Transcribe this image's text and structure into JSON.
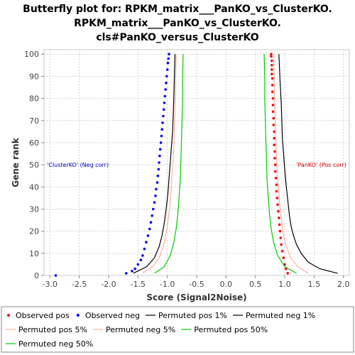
{
  "chart_data": {
    "type": "line",
    "title_lines": [
      "Butterfly plot for: RPKM_matrix___PanKO_vs_ClusterKO.",
      "RPKM_matrix___PanKO_vs_ClusterKO.",
      "cls#PanKO_versus_ClusterKO"
    ],
    "xlabel": "Score (Signal2Noise)",
    "ylabel": "Gene rank",
    "xlim": [
      -3.1,
      2.1
    ],
    "ylim": [
      0,
      102
    ],
    "xticks": [
      -3.0,
      -2.5,
      -2.0,
      -1.5,
      -1.0,
      -0.5,
      0.0,
      0.5,
      1.0,
      1.5,
      2.0
    ],
    "yticks": [
      0,
      10,
      20,
      30,
      40,
      50,
      60,
      70,
      80,
      90,
      100
    ],
    "grid": true,
    "legend_position": "bottom",
    "annotations": [
      {
        "text": "'ClusterKO' (Neg corr)",
        "x": -3.05,
        "y": 50,
        "color": "#0000cc",
        "anchor": "start"
      },
      {
        "text": "'PanKO' (Pos corr)",
        "x": 2.05,
        "y": 50,
        "color": "#cc0000",
        "anchor": "end"
      }
    ],
    "series": [
      {
        "name": "Observed pos",
        "kind": "points",
        "color": "#ff0000",
        "x": [
          1.05,
          1.02,
          1.0,
          0.98,
          0.96,
          0.94,
          0.93,
          0.92,
          0.91,
          0.9,
          0.89,
          0.88,
          0.87,
          0.86,
          0.86,
          0.85,
          0.84,
          0.84,
          0.83,
          0.83,
          0.82,
          0.82,
          0.82,
          0.81,
          0.81,
          0.8,
          0.8,
          0.8,
          0.79,
          0.79,
          0.79,
          0.78,
          0.78,
          0.78,
          0.78,
          0.77,
          0.77
        ],
        "y": [
          1,
          3,
          5,
          8,
          11,
          14,
          17,
          20,
          23,
          26,
          29,
          32,
          35,
          38,
          41,
          44,
          47,
          50,
          53,
          56,
          59,
          62,
          65,
          68,
          71,
          74,
          77,
          80,
          83,
          86,
          89,
          91,
          93,
          95,
          97,
          99,
          100
        ]
      },
      {
        "name": "Observed neg",
        "kind": "points",
        "color": "#0000ff",
        "x": [
          -2.9,
          -1.7,
          -1.6,
          -1.55,
          -1.5,
          -1.45,
          -1.42,
          -1.39,
          -1.36,
          -1.33,
          -1.3,
          -1.28,
          -1.26,
          -1.24,
          -1.22,
          -1.2,
          -1.19,
          -1.17,
          -1.16,
          -1.15,
          -1.14,
          -1.13,
          -1.12,
          -1.11,
          -1.1,
          -1.09,
          -1.08,
          -1.07,
          -1.06,
          -1.05,
          -1.04,
          -1.03,
          -1.02,
          -1.01,
          -1.0,
          -0.99,
          -0.98,
          -0.97
        ],
        "y": [
          0,
          1,
          2,
          3,
          5,
          7,
          9,
          12,
          15,
          18,
          21,
          24,
          27,
          30,
          33,
          36,
          39,
          42,
          45,
          48,
          51,
          54,
          57,
          60,
          63,
          66,
          69,
          72,
          75,
          78,
          81,
          84,
          87,
          90,
          93,
          96,
          98,
          100
        ]
      },
      {
        "name": "Permuted pos 1%",
        "kind": "line",
        "color": "#000000",
        "x": [
          1.9,
          1.6,
          1.4,
          1.28,
          1.2,
          1.15,
          1.11,
          1.08,
          1.06,
          1.04,
          1.02,
          1.0,
          0.98,
          0.96,
          0.95,
          0.94,
          0.92,
          0.9
        ],
        "y": [
          1,
          3,
          6,
          10,
          14,
          18,
          22,
          27,
          32,
          37,
          42,
          48,
          55,
          62,
          70,
          78,
          88,
          100
        ]
      },
      {
        "name": "Permuted neg 1%",
        "kind": "line",
        "color": "#000000",
        "x": [
          -1.58,
          -1.35,
          -1.22,
          -1.14,
          -1.09,
          -1.05,
          -1.02,
          -0.99,
          -0.97,
          -0.95,
          -0.93,
          -0.91,
          -0.9,
          -0.89,
          -0.88,
          -0.87
        ],
        "y": [
          1,
          4,
          8,
          13,
          18,
          24,
          30,
          37,
          44,
          51,
          58,
          65,
          72,
          80,
          90,
          100
        ]
      },
      {
        "name": "Permuted pos 5%",
        "kind": "line",
        "color": "#ffb0a0",
        "x": [
          1.4,
          1.22,
          1.1,
          1.03,
          0.98,
          0.95,
          0.92,
          0.9,
          0.88,
          0.86,
          0.85,
          0.84,
          0.83,
          0.82,
          0.81
        ],
        "y": [
          1,
          4,
          8,
          13,
          18,
          24,
          30,
          37,
          44,
          52,
          60,
          68,
          77,
          88,
          100
        ]
      },
      {
        "name": "Permuted neg 5%",
        "kind": "line",
        "color": "#ffb0a0",
        "x": [
          -1.42,
          -1.25,
          -1.14,
          -1.07,
          -1.02,
          -0.98,
          -0.95,
          -0.93,
          -0.91,
          -0.89,
          -0.88,
          -0.87,
          -0.86,
          -0.85
        ],
        "y": [
          1,
          4,
          8,
          13,
          19,
          26,
          33,
          41,
          49,
          57,
          66,
          75,
          86,
          100
        ]
      },
      {
        "name": "Permuted pos 50%",
        "kind": "line",
        "color": "#00cc00",
        "x": [
          1.2,
          1.0,
          0.88,
          0.81,
          0.77,
          0.74,
          0.72,
          0.7,
          0.69,
          0.68,
          0.67,
          0.66,
          0.66,
          0.65
        ],
        "y": [
          1,
          4,
          9,
          15,
          21,
          28,
          35,
          43,
          51,
          60,
          69,
          79,
          89,
          100
        ]
      },
      {
        "name": "Permuted neg 50%",
        "kind": "line",
        "color": "#00cc00",
        "x": [
          -1.22,
          -1.05,
          -0.95,
          -0.89,
          -0.85,
          -0.82,
          -0.8,
          -0.78,
          -0.77,
          -0.76,
          -0.75,
          -0.74,
          -0.74,
          -0.73
        ],
        "y": [
          1,
          4,
          9,
          15,
          21,
          28,
          35,
          43,
          51,
          60,
          69,
          79,
          89,
          100
        ]
      }
    ]
  }
}
